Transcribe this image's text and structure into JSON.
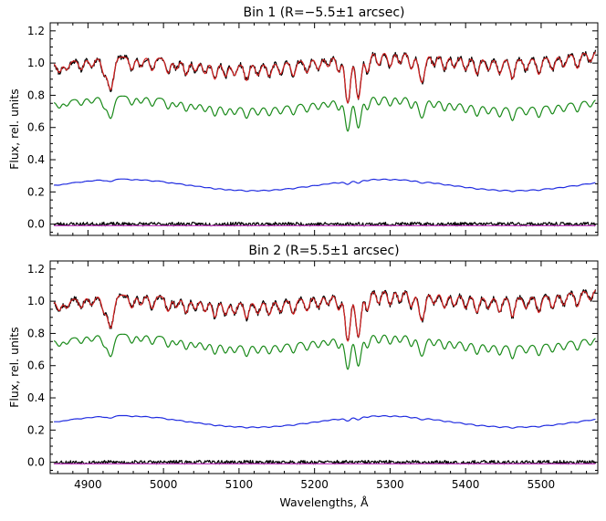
{
  "chart_data": [
    {
      "type": "line",
      "title": "Bin 1 (R=−5.5±1 arcsec)",
      "ylabel": "Flux, rel. units",
      "xlabel": "",
      "xlim": [
        4850,
        5575
      ],
      "ylim": [
        -0.07,
        1.25
      ],
      "xticks": [
        4900,
        5000,
        5100,
        5200,
        5300,
        5400,
        5500
      ],
      "yticks": [
        0.0,
        0.2,
        0.4,
        0.6,
        0.8,
        1.0,
        1.2
      ],
      "xticklabels": [],
      "yticklabels": [
        "0.0",
        "0.2",
        "0.4",
        "0.6",
        "0.8",
        "1.0",
        "1.2"
      ],
      "legend": "none",
      "grid": false,
      "series": [
        {
          "color": "#000000",
          "level": 1.0,
          "depth": 1.0,
          "noise": 0.016,
          "seed": 11
        },
        {
          "color": "#d42020",
          "level": 1.0,
          "depth": 1.0,
          "noise": 0.0,
          "seed": 0
        },
        {
          "color": "#1a8a1a",
          "level": 0.76,
          "depth": 0.9,
          "noise": 0.0,
          "seed": 0
        },
        {
          "color": "#1f2be0",
          "level": 0.245,
          "depth": 0.28,
          "noise": 0.0,
          "seed": 0
        },
        {
          "color": "#000000",
          "level": 0.0,
          "depth": 0.0,
          "noise": 0.012,
          "seed": 23
        },
        {
          "color": "#c040c0",
          "level": -0.01,
          "depth": 0.0,
          "noise": 0.0,
          "seed": 0
        }
      ]
    },
    {
      "type": "line",
      "title": "Bin 2 (R=5.5±1 arcsec)",
      "ylabel": "Flux, rel. units",
      "xlabel": "Wavelengths, Å",
      "xlim": [
        4850,
        5575
      ],
      "ylim": [
        -0.07,
        1.25
      ],
      "xticks": [
        4900,
        5000,
        5100,
        5200,
        5300,
        5400,
        5500
      ],
      "yticks": [
        0.0,
        0.2,
        0.4,
        0.6,
        0.8,
        1.0,
        1.2
      ],
      "xticklabels": [
        "4900",
        "5000",
        "5100",
        "5200",
        "5300",
        "5400",
        "5500"
      ],
      "yticklabels": [
        "0.0",
        "0.2",
        "0.4",
        "0.6",
        "0.8",
        "1.0",
        "1.2"
      ],
      "legend": "none",
      "grid": false,
      "series": [
        {
          "color": "#000000",
          "level": 1.0,
          "depth": 1.0,
          "noise": 0.016,
          "seed": 37
        },
        {
          "color": "#d42020",
          "level": 1.0,
          "depth": 1.0,
          "noise": 0.0,
          "seed": 0
        },
        {
          "color": "#1a8a1a",
          "level": 0.76,
          "depth": 0.9,
          "noise": 0.0,
          "seed": 0
        },
        {
          "color": "#1f2be0",
          "level": 0.255,
          "depth": 0.28,
          "noise": 0.0,
          "seed": 0
        },
        {
          "color": "#000000",
          "level": 0.0,
          "depth": 0.0,
          "noise": 0.012,
          "seed": 53
        },
        {
          "color": "#c040c0",
          "level": -0.01,
          "depth": 0.0,
          "noise": 0.0,
          "seed": 0
        }
      ]
    }
  ]
}
